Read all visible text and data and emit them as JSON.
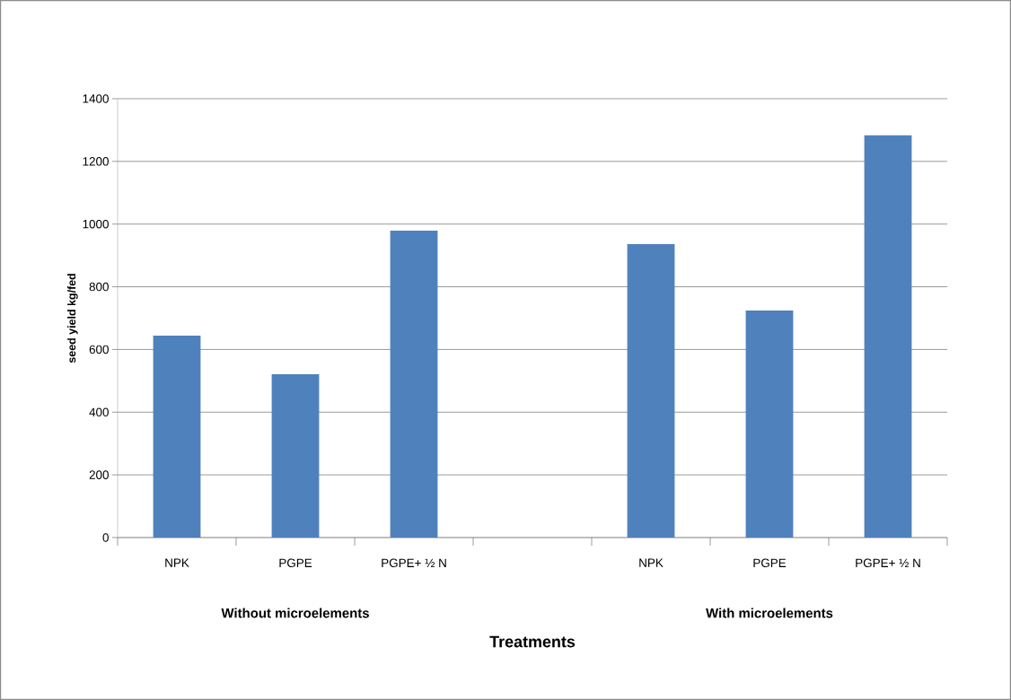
{
  "chart_data": {
    "type": "bar",
    "xlabel": "Treatments",
    "ylabel": "seed yield kg/fed",
    "categories": [
      "NPK",
      "PGPE",
      "PGPE+ ½ N",
      null,
      "NPK",
      "PGPE",
      "PGPE+ ½ N"
    ],
    "values": [
      644,
      521,
      979,
      null,
      936,
      724,
      1283
    ],
    "color": "#4f81bd",
    "ylim": [
      0,
      1400
    ],
    "yticks": [
      0,
      200,
      400,
      600,
      800,
      1000,
      1200,
      1400
    ],
    "grid": "y",
    "annotations": [
      "Without microelements",
      "With microelements"
    ]
  }
}
